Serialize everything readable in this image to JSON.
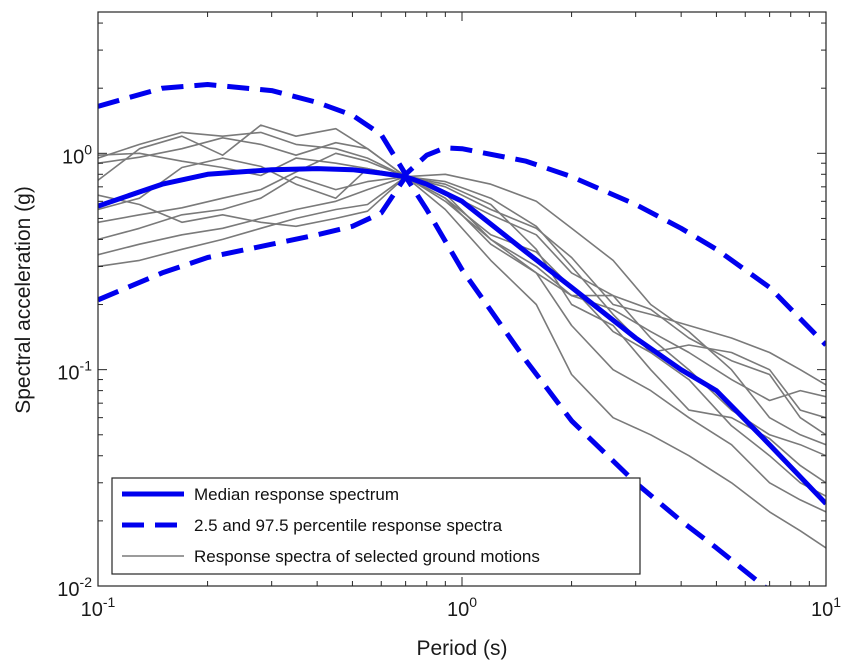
{
  "chart_data": {
    "type": "line",
    "xlabel": "Period (s)",
    "ylabel": "Spectral acceleration (g)",
    "x_scale": "log",
    "y_scale": "log",
    "xlim": [
      0.1,
      10
    ],
    "ylim": [
      0.01,
      4.5
    ],
    "x_ticks": [
      {
        "value": 0.1,
        "base": "10",
        "exp": "-1"
      },
      {
        "value": 1,
        "base": "10",
        "exp": "0"
      },
      {
        "value": 10,
        "base": "10",
        "exp": "1"
      }
    ],
    "y_ticks": [
      {
        "value": 0.01,
        "base": "10",
        "exp": "-2"
      },
      {
        "value": 0.1,
        "base": "10",
        "exp": "-1"
      },
      {
        "value": 1,
        "base": "10",
        "exp": "0"
      }
    ],
    "grid": false,
    "legend_position": "bottom-left",
    "legend": [
      {
        "label": "Median response spectrum",
        "style": "solid-thick",
        "color": "#0000ee"
      },
      {
        "label": "2.5 and 97.5 percentile response spectra",
        "style": "dashed-thick",
        "color": "#0000ee"
      },
      {
        "label": "Response spectra of selected ground motions",
        "style": "solid-thin",
        "color": "#7a7a7a"
      }
    ],
    "series": [
      {
        "role": "median",
        "color": "#0000ee",
        "x": [
          0.1,
          0.15,
          0.2,
          0.3,
          0.4,
          0.5,
          0.6,
          0.7,
          0.8,
          1.0,
          1.5,
          2.0,
          3.0,
          4.0,
          5.0,
          7.0,
          10.0
        ],
        "y": [
          0.57,
          0.72,
          0.8,
          0.84,
          0.85,
          0.84,
          0.81,
          0.78,
          0.72,
          0.6,
          0.35,
          0.24,
          0.14,
          0.1,
          0.08,
          0.045,
          0.024
        ]
      },
      {
        "role": "upper",
        "color": "#0000ee",
        "x": [
          0.1,
          0.15,
          0.2,
          0.3,
          0.4,
          0.5,
          0.6,
          0.7,
          0.8,
          0.9,
          1.0,
          1.5,
          2.0,
          3.0,
          4.0,
          5.0,
          7.0,
          10.0
        ],
        "y": [
          1.65,
          2.0,
          2.08,
          1.95,
          1.72,
          1.5,
          1.22,
          0.8,
          0.98,
          1.06,
          1.05,
          0.92,
          0.78,
          0.58,
          0.45,
          0.36,
          0.24,
          0.13
        ]
      },
      {
        "role": "lower",
        "color": "#0000ee",
        "x": [
          0.1,
          0.15,
          0.2,
          0.3,
          0.4,
          0.5,
          0.6,
          0.7,
          0.8,
          1.0,
          1.5,
          2.0,
          3.0,
          4.0,
          5.0,
          7.0
        ],
        "y": [
          0.21,
          0.28,
          0.33,
          0.38,
          0.42,
          0.46,
          0.53,
          0.78,
          0.55,
          0.29,
          0.11,
          0.058,
          0.03,
          0.02,
          0.015,
          0.0095
        ]
      },
      {
        "role": "record",
        "color": "#7a7a7a",
        "x": [
          0.1,
          0.13,
          0.17,
          0.22,
          0.28,
          0.35,
          0.45,
          0.55,
          0.7,
          0.9,
          1.2,
          1.6,
          2.0,
          2.6,
          3.3,
          4.2,
          5.5,
          7.0,
          8.5,
          10.0
        ],
        "y": [
          0.98,
          1.0,
          0.92,
          0.86,
          0.79,
          0.95,
          0.9,
          0.85,
          0.78,
          0.65,
          0.4,
          0.3,
          0.22,
          0.19,
          0.15,
          0.12,
          0.09,
          0.072,
          0.08,
          0.075
        ]
      },
      {
        "role": "record",
        "color": "#7a7a7a",
        "x": [
          0.1,
          0.13,
          0.17,
          0.22,
          0.28,
          0.35,
          0.45,
          0.55,
          0.7,
          0.9,
          1.2,
          1.6,
          2.0,
          2.6,
          3.3,
          4.2,
          5.5,
          7.0,
          8.5,
          10.0
        ],
        "y": [
          0.9,
          0.96,
          1.05,
          1.18,
          1.1,
          0.98,
          1.12,
          1.05,
          0.78,
          0.7,
          0.55,
          0.45,
          0.33,
          0.2,
          0.18,
          0.16,
          0.14,
          0.12,
          0.1,
          0.085
        ]
      },
      {
        "role": "record",
        "color": "#7a7a7a",
        "x": [
          0.1,
          0.13,
          0.17,
          0.22,
          0.28,
          0.35,
          0.45,
          0.55,
          0.7,
          0.9,
          1.2,
          1.6,
          2.0,
          2.6,
          3.3,
          4.2,
          5.5,
          7.0,
          8.5,
          10.0
        ],
        "y": [
          0.75,
          1.05,
          1.2,
          0.98,
          1.35,
          1.2,
          1.3,
          1.05,
          0.78,
          0.62,
          0.38,
          0.28,
          0.22,
          0.22,
          0.19,
          0.14,
          0.11,
          0.095,
          0.06,
          0.05
        ]
      },
      {
        "role": "record",
        "color": "#7a7a7a",
        "x": [
          0.1,
          0.13,
          0.17,
          0.22,
          0.28,
          0.35,
          0.45,
          0.55,
          0.7,
          0.9,
          1.2,
          1.6,
          2.0,
          2.6,
          3.3,
          4.2,
          5.5,
          7.0,
          8.5,
          10.0
        ],
        "y": [
          0.55,
          0.62,
          0.86,
          0.95,
          0.87,
          0.72,
          0.62,
          0.85,
          0.78,
          0.62,
          0.42,
          0.35,
          0.24,
          0.15,
          0.12,
          0.13,
          0.12,
          0.1,
          0.065,
          0.06
        ]
      },
      {
        "role": "record",
        "color": "#7a7a7a",
        "x": [
          0.1,
          0.13,
          0.17,
          0.22,
          0.28,
          0.35,
          0.45,
          0.55,
          0.7,
          0.9,
          1.2,
          1.6,
          2.0,
          2.6,
          3.3,
          4.2,
          5.5,
          7.0,
          8.5,
          10.0
        ],
        "y": [
          0.48,
          0.52,
          0.56,
          0.62,
          0.68,
          0.82,
          1.0,
          0.92,
          0.78,
          0.66,
          0.52,
          0.42,
          0.28,
          0.22,
          0.14,
          0.1,
          0.065,
          0.05,
          0.045,
          0.04
        ]
      },
      {
        "role": "record",
        "color": "#7a7a7a",
        "x": [
          0.1,
          0.13,
          0.17,
          0.22,
          0.28,
          0.35,
          0.45,
          0.55,
          0.7,
          0.9,
          1.2,
          1.6,
          2.0,
          2.6,
          3.3,
          4.2,
          5.5,
          7.0,
          8.5,
          10.0
        ],
        "y": [
          0.4,
          0.45,
          0.52,
          0.55,
          0.62,
          0.78,
          0.68,
          0.74,
          0.78,
          0.72,
          0.58,
          0.36,
          0.2,
          0.16,
          0.1,
          0.065,
          0.06,
          0.048,
          0.036,
          0.03
        ]
      },
      {
        "role": "record",
        "color": "#7a7a7a",
        "x": [
          0.1,
          0.13,
          0.17,
          0.22,
          0.28,
          0.35,
          0.45,
          0.55,
          0.7,
          0.9,
          1.2,
          1.6,
          2.0,
          2.6,
          3.3,
          4.2,
          5.5,
          7.0,
          8.5,
          10.0
        ],
        "y": [
          0.34,
          0.38,
          0.42,
          0.45,
          0.5,
          0.55,
          0.6,
          0.68,
          0.78,
          0.6,
          0.4,
          0.28,
          0.16,
          0.1,
          0.08,
          0.06,
          0.045,
          0.03,
          0.025,
          0.022
        ]
      },
      {
        "role": "record",
        "color": "#7a7a7a",
        "x": [
          0.1,
          0.13,
          0.17,
          0.22,
          0.28,
          0.35,
          0.45,
          0.55,
          0.7,
          0.9,
          1.2,
          1.6,
          2.0,
          2.6,
          3.3,
          4.2,
          5.5,
          7.0,
          8.5,
          10.0
        ],
        "y": [
          0.3,
          0.32,
          0.36,
          0.4,
          0.45,
          0.5,
          0.55,
          0.58,
          0.78,
          0.55,
          0.32,
          0.2,
          0.095,
          0.06,
          0.05,
          0.04,
          0.03,
          0.022,
          0.018,
          0.015
        ]
      },
      {
        "role": "record",
        "color": "#7a7a7a",
        "x": [
          0.1,
          0.13,
          0.17,
          0.22,
          0.28,
          0.35,
          0.45,
          0.55,
          0.7,
          0.9,
          1.2,
          1.6,
          2.0,
          2.6,
          3.3,
          4.2,
          5.5,
          7.0,
          8.5,
          10.0
        ],
        "y": [
          0.64,
          0.58,
          0.48,
          0.52,
          0.48,
          0.46,
          0.5,
          0.54,
          0.78,
          0.8,
          0.72,
          0.6,
          0.45,
          0.32,
          0.2,
          0.15,
          0.1,
          0.06,
          0.05,
          0.045
        ]
      },
      {
        "role": "record",
        "color": "#7a7a7a",
        "x": [
          0.1,
          0.13,
          0.17,
          0.22,
          0.28,
          0.35,
          0.45,
          0.55,
          0.7,
          0.9,
          1.2,
          1.6,
          2.0,
          2.6,
          3.3,
          4.2,
          5.5,
          7.0,
          8.5,
          10.0
        ],
        "y": [
          0.95,
          1.1,
          1.25,
          1.2,
          1.25,
          1.1,
          1.05,
          0.95,
          0.78,
          0.74,
          0.62,
          0.46,
          0.3,
          0.18,
          0.12,
          0.09,
          0.055,
          0.04,
          0.03,
          0.026
        ]
      }
    ]
  }
}
